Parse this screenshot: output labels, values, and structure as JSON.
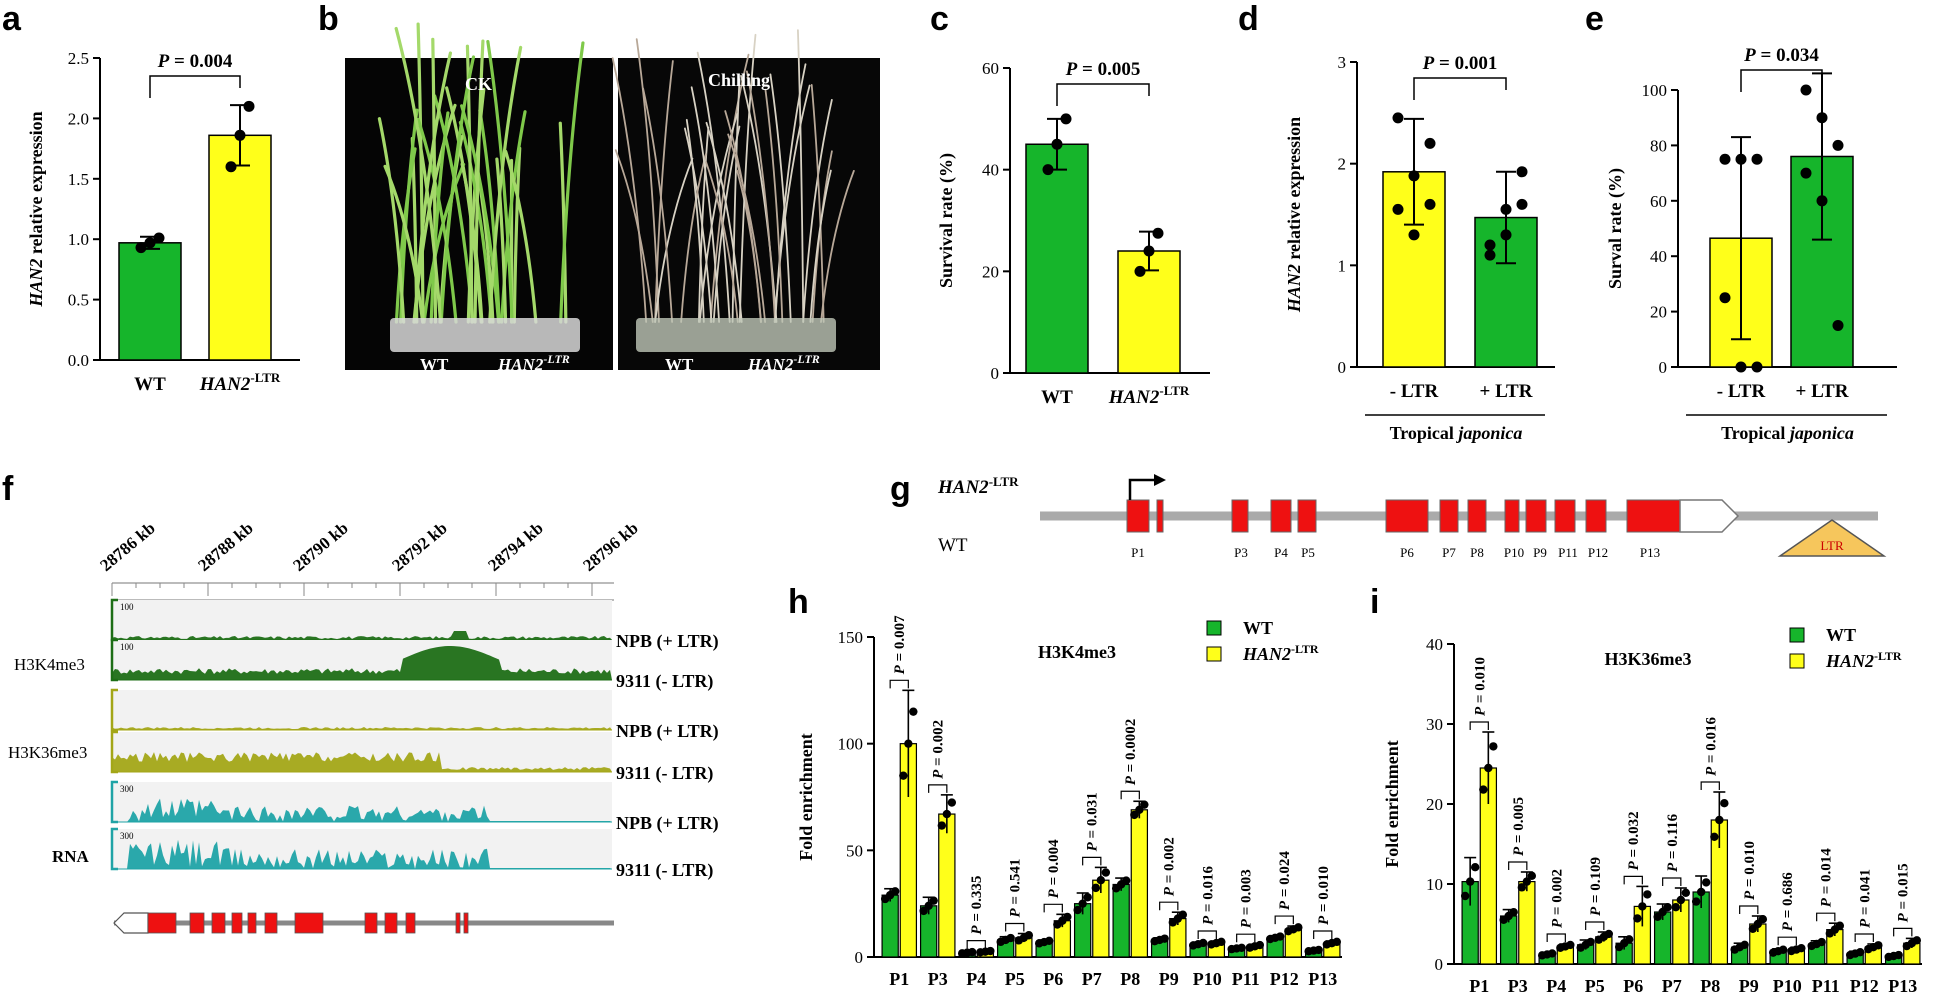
{
  "colors": {
    "green": "#16b52b",
    "yellow": "#ffff1a",
    "red": "#ee1111",
    "dark_green": "#1d6e16",
    "olive": "#a3a617",
    "teal": "#1fa3a6",
    "gray": "#aaaaaa",
    "ltr_fill": "#f6c65c"
  },
  "panels": {
    "a": "a",
    "b": "b",
    "c": "c",
    "d": "d",
    "e": "e",
    "f": "f",
    "g": "g",
    "h": "h",
    "i": "i"
  },
  "chart_data": [
    {
      "id": "a",
      "type": "bar",
      "ylabel_gene": "HAN2",
      "ylabel_rest": " relative expression",
      "ylim": [
        0,
        2.5
      ],
      "yticks": [
        "0.0",
        "0.5",
        "1.0",
        "1.5",
        "2.0",
        "2.5"
      ],
      "categories": [
        "WT",
        "HAN2"
      ],
      "category_sup": [
        "",
        "-LTR"
      ],
      "values": [
        0.97,
        1.86
      ],
      "errors": [
        0.05,
        0.25
      ],
      "points": [
        [
          0.93,
          0.97,
          1.01
        ],
        [
          1.6,
          1.86,
          2.1
        ]
      ],
      "pvalue_p": "P",
      "pvalue_rest": " = 0.004"
    },
    {
      "id": "c",
      "type": "bar",
      "ylabel": "Survival rate (%)",
      "ylim": [
        0,
        60
      ],
      "yticks": [
        "0",
        "20",
        "40",
        "60"
      ],
      "categories": [
        "WT",
        "HAN2"
      ],
      "category_sup": [
        "",
        "-LTR"
      ],
      "values": [
        45,
        24
      ],
      "errors": [
        5,
        3.8
      ],
      "points": [
        [
          40,
          45,
          50
        ],
        [
          20,
          24,
          27.5
        ]
      ],
      "pvalue_p": "P",
      "pvalue_rest": " = 0.005"
    },
    {
      "id": "d",
      "type": "bar",
      "ylabel_gene": "HAN2",
      "ylabel_rest": " relative expression",
      "ylim": [
        0,
        3
      ],
      "yticks": [
        "0",
        "1",
        "2",
        "3"
      ],
      "categories": [
        "- LTR",
        "+ LTR"
      ],
      "group_label": "Tropical ",
      "group_label_italic": "japonica",
      "values": [
        1.92,
        1.47
      ],
      "errors": [
        0.52,
        0.45
      ],
      "points": [
        [
          1.55,
          1.88,
          2.2,
          2.45,
          1.3,
          1.6
        ],
        [
          1.2,
          1.55,
          1.92,
          1.1,
          1.3,
          1.6
        ]
      ],
      "pvalue_p": "P",
      "pvalue_rest": " = 0.001"
    },
    {
      "id": "e",
      "type": "bar",
      "ylabel": "Surval rate (%)",
      "ylim": [
        0,
        100
      ],
      "yticks": [
        "0",
        "20",
        "40",
        "60",
        "80",
        "100"
      ],
      "categories": [
        "- LTR",
        "+ LTR"
      ],
      "group_label": "Tropical ",
      "group_label_italic": "japonica",
      "values": [
        46.5,
        76
      ],
      "errors": [
        36.5,
        30
      ],
      "points": [
        [
          75,
          75,
          75,
          25,
          0,
          0
        ],
        [
          100,
          90,
          80,
          70,
          60,
          15
        ]
      ],
      "pvalue_p": "P",
      "pvalue_rest": " = 0.034"
    },
    {
      "id": "h",
      "type": "bar",
      "title": "H3K4me3",
      "ylabel": "Fold enrichment",
      "ylim": [
        0,
        150
      ],
      "yticks": [
        "0",
        "50",
        "100",
        "150"
      ],
      "categories": [
        "P1",
        "P3",
        "P4",
        "P5",
        "P6",
        "P7",
        "P8",
        "P9",
        "P10",
        "P11",
        "P12",
        "P13"
      ],
      "series": [
        {
          "name": "WT",
          "values": [
            29,
            24,
            2,
            8,
            7,
            25,
            34,
            8,
            6,
            4,
            9,
            3
          ],
          "errors": [
            3,
            4,
            0.5,
            1.5,
            1,
            5,
            3,
            1,
            1,
            0.5,
            1,
            0.5
          ]
        },
        {
          "name": "HAN2",
          "sup": "-LTR",
          "values": [
            100,
            67,
            2.5,
            9,
            17,
            36,
            69,
            18,
            6.5,
            5,
            13,
            6.5
          ],
          "errors": [
            25,
            9,
            0.5,
            2,
            3,
            6,
            4,
            3,
            1,
            1,
            1.5,
            1
          ]
        }
      ],
      "pvalues": [
        "P = 0.007",
        "P = 0.002",
        "P = 0.335",
        "P = 0.541",
        "P = 0.004",
        "P = 0.031",
        "P = 0.0002",
        "P = 0.002",
        "P = 0.016",
        "P = 0.003",
        "P = 0.024",
        "P = 0.010"
      ]
    },
    {
      "id": "i",
      "type": "bar",
      "title": "H3K36me3",
      "ylabel": "Fold enrichment",
      "ylim": [
        0,
        40
      ],
      "yticks": [
        "0",
        "10",
        "20",
        "30",
        "40"
      ],
      "categories": [
        "P1",
        "P3",
        "P4",
        "P5",
        "P6",
        "P7",
        "P8",
        "P9",
        "P10",
        "P11",
        "P12",
        "P13"
      ],
      "series": [
        {
          "name": "WT",
          "values": [
            10.3,
            6,
            1.2,
            2.4,
            2.6,
            6.5,
            9,
            2.1,
            1.6,
            2.5,
            1.3,
            1
          ],
          "errors": [
            3,
            0.8,
            0.2,
            0.6,
            0.8,
            1,
            2,
            0.5,
            0.3,
            0.4,
            0.3,
            0.2
          ]
        },
        {
          "name": "HAN2",
          "sup": "-LTR",
          "values": [
            24.5,
            10.3,
            2.2,
            3.4,
            7.2,
            8,
            18,
            5,
            1.8,
            4.3,
            2.1,
            2.6
          ],
          "errors": [
            4.5,
            1.2,
            0.3,
            0.6,
            2.5,
            1.5,
            3.5,
            1,
            0.3,
            0.8,
            0.4,
            0.6
          ]
        }
      ],
      "pvalues": [
        "P = 0.010",
        "P = 0.005",
        "P = 0.002",
        "P = 0.109",
        "P = 0.032",
        "P = 0.116",
        "P = 0.016",
        "P = 0.010",
        "P = 0.686",
        "P = 0.014",
        "P = 0.041",
        "P = 0.015"
      ]
    }
  ],
  "photo": {
    "left_label": "CK",
    "right_label": "Chilling",
    "wt": "WT",
    "han2": "HAN2",
    "han2_sup": "-LTR"
  },
  "tracks": {
    "coords": [
      "28786 kb",
      "28788 kb",
      "28790 kb",
      "28792 kb",
      "28794 kb",
      "28796 kb"
    ],
    "groups": [
      "H3K4me3",
      "H3K36me3",
      "RNA"
    ],
    "rows": [
      {
        "scale": "100",
        "label": "NPB (+ LTR)"
      },
      {
        "scale": "100",
        "label": "9311 (- LTR)"
      },
      {
        "scale": "",
        "label": "NPB (+ LTR)"
      },
      {
        "scale": "",
        "label": "9311 (- LTR)"
      },
      {
        "scale": "300",
        "label": "NPB (+ LTR)"
      },
      {
        "scale": "300",
        "label": "9311 (- LTR)"
      }
    ]
  },
  "gene": {
    "han2_label": "HAN2",
    "han2_sup": "-LTR",
    "wt_label": "WT",
    "ltr": "LTR",
    "primers": [
      "P1",
      "P3",
      "P4",
      "P5",
      "P6",
      "P7",
      "P8",
      "P10",
      "P9",
      "P11",
      "P12",
      "P13"
    ]
  }
}
